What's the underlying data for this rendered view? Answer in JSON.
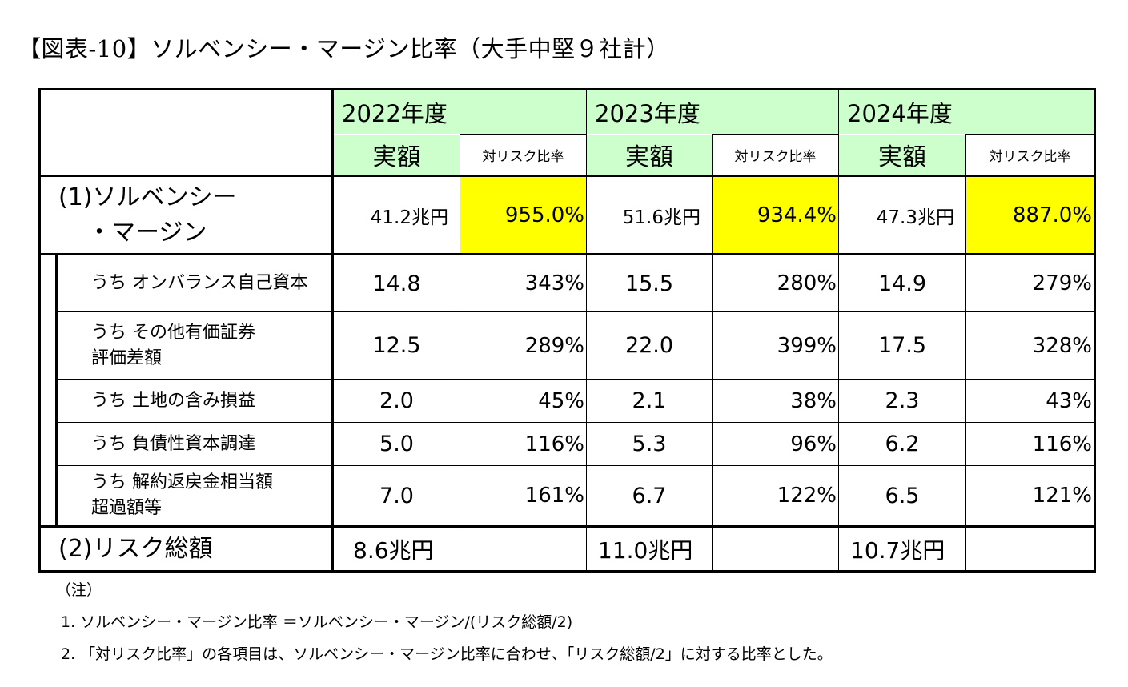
{
  "title": "【図表-10】ソルベンシー・マージン比率（大手中堅９社計）",
  "header": {
    "years": [
      "2022年度",
      "2023年度",
      "2024年度"
    ],
    "amount_label": "実額",
    "ratio_label": "対リスク比率"
  },
  "solvency_margin": {
    "label_line1": "(1)ソルベンシー",
    "label_line2": "・マージン",
    "values": [
      {
        "amount": "41.2兆円",
        "ratio": "955.0%"
      },
      {
        "amount": "51.6兆円",
        "ratio": "934.4%"
      },
      {
        "amount": "47.3兆円",
        "ratio": "887.0%"
      }
    ]
  },
  "items": [
    {
      "label_line1": "うち オンバランス自己資本",
      "label_line2": "",
      "values": [
        {
          "amount": "14.8",
          "ratio": "343%"
        },
        {
          "amount": "15.5",
          "ratio": "280%"
        },
        {
          "amount": "14.9",
          "ratio": "279%"
        }
      ]
    },
    {
      "label_line1": "うち その他有価証券",
      "label_line2": "評価差額",
      "values": [
        {
          "amount": "12.5",
          "ratio": "289%"
        },
        {
          "amount": "22.0",
          "ratio": "399%"
        },
        {
          "amount": "17.5",
          "ratio": "328%"
        }
      ]
    },
    {
      "label_line1": "うち 土地の含み損益",
      "label_line2": "",
      "values": [
        {
          "amount": "2.0",
          "ratio": "45%"
        },
        {
          "amount": "2.1",
          "ratio": "38%"
        },
        {
          "amount": "2.3",
          "ratio": "43%"
        }
      ]
    },
    {
      "label_line1": "うち 負債性資本調達",
      "label_line2": "",
      "values": [
        {
          "amount": "5.0",
          "ratio": "116%"
        },
        {
          "amount": "5.3",
          "ratio": "96%"
        },
        {
          "amount": "6.2",
          "ratio": "116%"
        }
      ]
    },
    {
      "label_line1": "うち 解約返戻金相当額",
      "label_line2": "超過額等",
      "values": [
        {
          "amount": "7.0",
          "ratio": "161%"
        },
        {
          "amount": "6.7",
          "ratio": "122%"
        },
        {
          "amount": "6.5",
          "ratio": "121%"
        }
      ]
    }
  ],
  "risk_total": {
    "label": "(2)リスク総額",
    "values": [
      "8.6兆円",
      "11.0兆円",
      "10.7兆円"
    ]
  },
  "notes": {
    "heading": "（注）",
    "line1": "1. ソルベンシー・マージン比率 ＝ソルベンシー・マージン/(リスク総額/2)",
    "line2": "2. 「対リスク比率」の各項目は、ソルベンシー・マージン比率に合わせ、「リスク総額/2」に対する比率とした。"
  },
  "colors": {
    "header_bg": "#ccffcc",
    "highlight": "#ffff00"
  }
}
